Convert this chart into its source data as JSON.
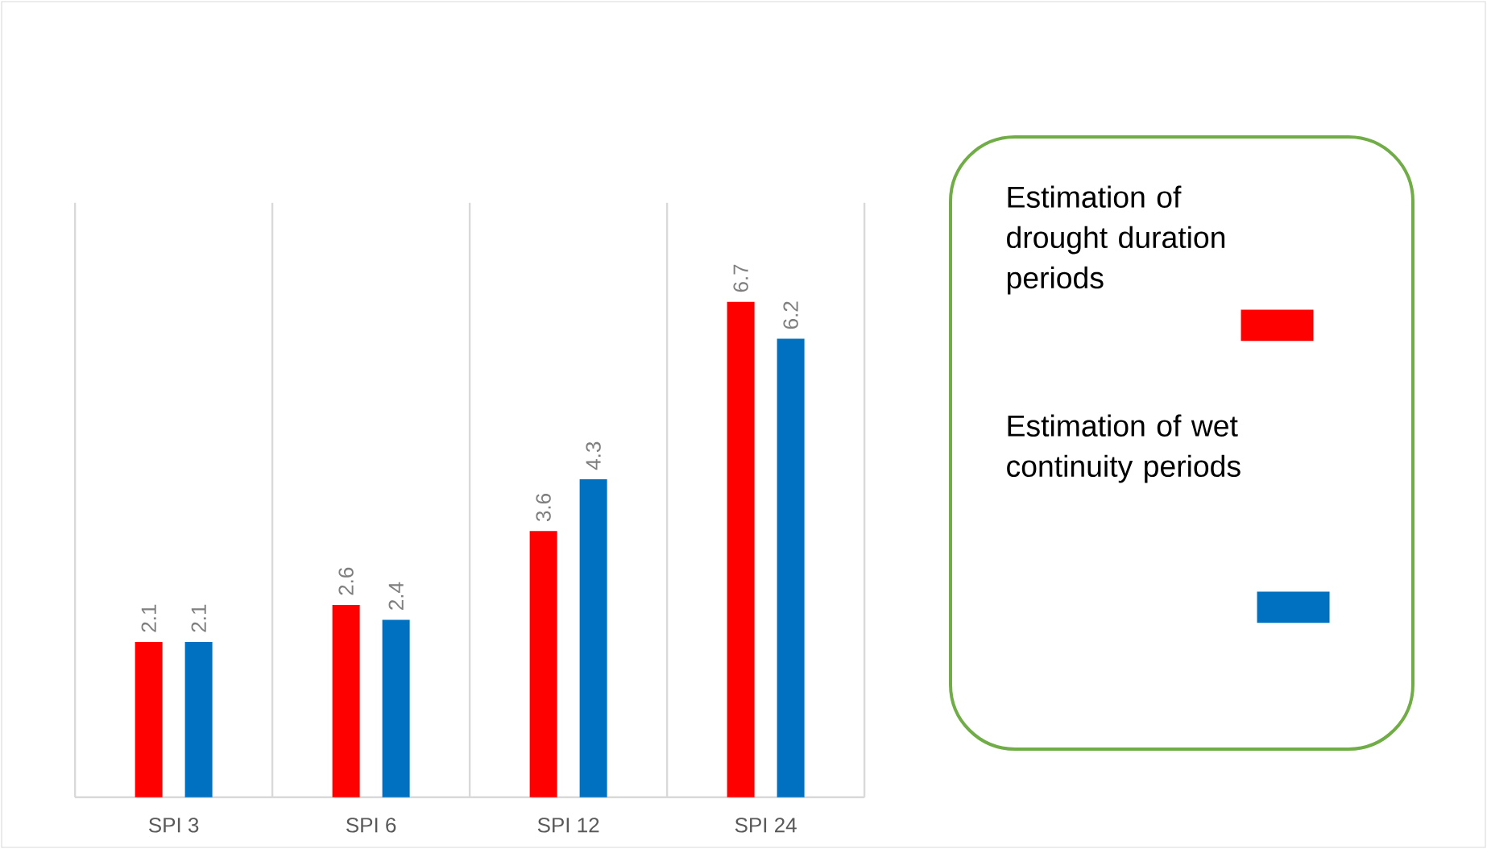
{
  "chart_data": {
    "type": "bar",
    "categories": [
      "SPI 3",
      "SPI 6",
      "SPI 12",
      "SPI 24"
    ],
    "series": [
      {
        "name": "Estimation of drought duration periods",
        "color": "#ff0000",
        "values": [
          2.1,
          2.6,
          3.6,
          6.7
        ]
      },
      {
        "name": "Estimation of wet continuity periods",
        "color": "#0070c0",
        "values": [
          2.1,
          2.4,
          4.3,
          6.2
        ]
      }
    ],
    "data_labels": true,
    "grid": "x",
    "legend": "right"
  }
}
